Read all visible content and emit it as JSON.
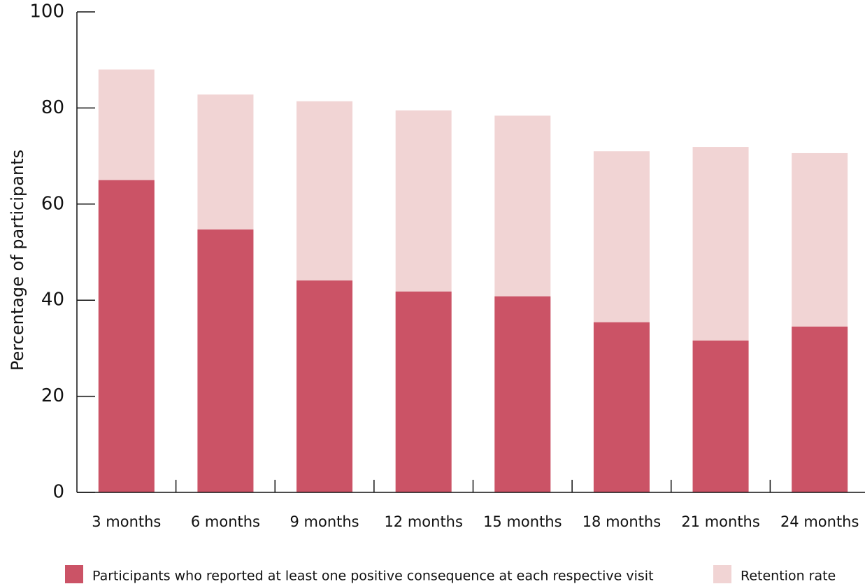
{
  "chart_data": {
    "type": "bar",
    "overlap": true,
    "ylabel": "Percentage of participants",
    "categories": [
      "3 months",
      "6 months",
      "9 months",
      "12 months",
      "15 months",
      "18 months",
      "21 months",
      "24 months"
    ],
    "series": [
      {
        "name": "Participants who reported at least one positive consequence at each respective visit",
        "color": "#cb5366",
        "values": [
          65,
          54.7,
          44.1,
          41.8,
          40.8,
          35.4,
          31.6,
          34.5
        ]
      },
      {
        "name": "Retention rate",
        "color": "#f1d4d4",
        "values": [
          88,
          82.8,
          81.4,
          79.5,
          78.4,
          71,
          71.9,
          70.6
        ]
      }
    ],
    "ylim": [
      0,
      100
    ],
    "yticks": [
      0,
      20,
      40,
      60,
      80,
      100
    ],
    "grid": false
  }
}
